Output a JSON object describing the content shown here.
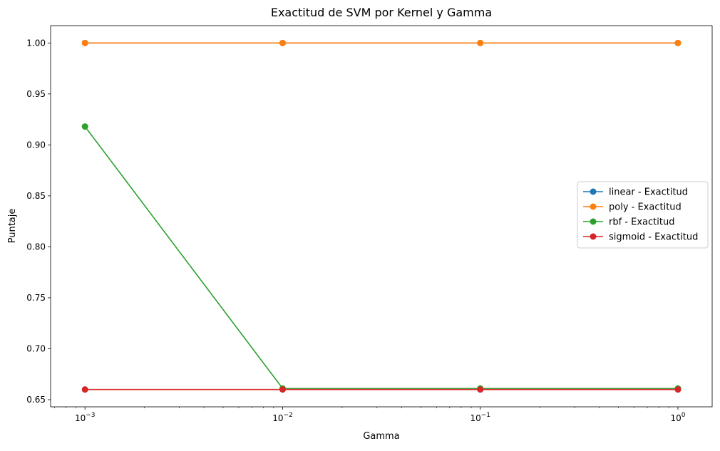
{
  "chart_data": {
    "type": "line",
    "title": "Exactitud de SVM por Kernel y Gamma",
    "xlabel": "Gamma",
    "ylabel": "Puntaje",
    "xscale": "log",
    "x": [
      0.001,
      0.01,
      0.1,
      1
    ],
    "xlim": [
      0.00067,
      1.49
    ],
    "ylim": [
      0.643,
      1.017
    ],
    "x_ticks": [
      {
        "value": 0.001,
        "base": "10",
        "exp": "−3"
      },
      {
        "value": 0.01,
        "base": "10",
        "exp": "−2"
      },
      {
        "value": 0.1,
        "base": "10",
        "exp": "−1"
      },
      {
        "value": 1,
        "base": "10",
        "exp": "0"
      }
    ],
    "y_ticks": [
      0.65,
      0.7,
      0.75,
      0.8,
      0.85,
      0.9,
      0.95,
      1.0
    ],
    "y_tick_labels": [
      "0.65",
      "0.70",
      "0.75",
      "0.80",
      "0.85",
      "0.90",
      "0.95",
      "1.00"
    ],
    "grid": false,
    "legend_position": "center-right",
    "series": [
      {
        "name": "linear - Exactitud",
        "color": "#1f77b4",
        "marker": "circle",
        "values": [
          1.0,
          1.0,
          1.0,
          1.0
        ]
      },
      {
        "name": "poly - Exactitud",
        "color": "#ff7f0e",
        "marker": "circle",
        "values": [
          1.0,
          1.0,
          1.0,
          1.0
        ]
      },
      {
        "name": "rbf - Exactitud",
        "color": "#2ca02c",
        "marker": "circle",
        "values": [
          0.918,
          0.661,
          0.661,
          0.661
        ]
      },
      {
        "name": "sigmoid - Exactitud",
        "color": "#d62728",
        "marker": "circle",
        "values": [
          0.66,
          0.66,
          0.66,
          0.66
        ]
      }
    ]
  }
}
